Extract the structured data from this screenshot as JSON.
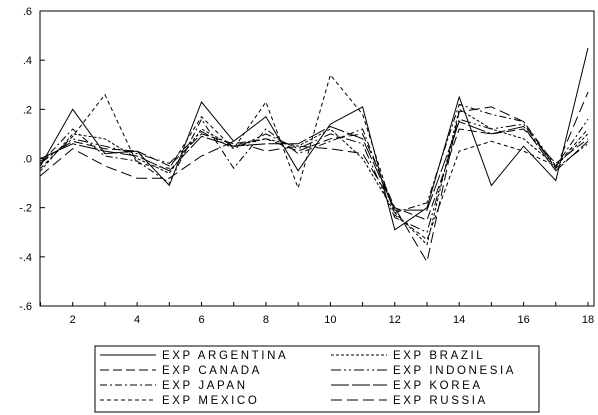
{
  "chart_data": {
    "type": "line",
    "title": "",
    "xlabel": "",
    "ylabel": "",
    "x": [
      1,
      2,
      3,
      4,
      5,
      6,
      7,
      8,
      9,
      10,
      11,
      12,
      13,
      14,
      15,
      16,
      17,
      18
    ],
    "xlim": [
      1,
      18
    ],
    "ylim": [
      -0.6,
      0.6
    ],
    "x_ticks": [
      2,
      4,
      6,
      8,
      10,
      12,
      14,
      16,
      18
    ],
    "x_tick_labels": [
      "2",
      "4",
      "6",
      "8",
      "10",
      "12",
      "14",
      "16",
      "18"
    ],
    "y_ticks": [
      -0.6,
      -0.4,
      -0.2,
      0.0,
      0.2,
      0.4,
      0.6
    ],
    "y_tick_labels": [
      "-.6",
      "-.4",
      "-.2",
      ".0",
      ".2",
      ".4",
      ".6"
    ],
    "grid": false,
    "legend_position": "bottom",
    "series": [
      {
        "name": "EXP ARGENTINA",
        "dash": "solid",
        "values": [
          -0.03,
          0.2,
          0.02,
          0.03,
          -0.11,
          0.23,
          0.07,
          0.17,
          -0.05,
          0.14,
          0.21,
          -0.29,
          -0.2,
          0.25,
          -0.11,
          0.05,
          -0.09,
          0.45
        ]
      },
      {
        "name": "EXP BRAZIL",
        "dash": "short",
        "values": [
          -0.05,
          0.1,
          0.08,
          0.0,
          -0.06,
          0.12,
          0.05,
          0.08,
          0.05,
          0.12,
          0.0,
          -0.22,
          -0.35,
          0.2,
          0.12,
          0.08,
          -0.03,
          0.1
        ]
      },
      {
        "name": "EXP CANADA",
        "dash": "long",
        "values": [
          -0.01,
          0.07,
          0.04,
          0.03,
          -0.03,
          0.1,
          0.06,
          0.08,
          0.03,
          0.08,
          0.1,
          -0.2,
          -0.25,
          0.12,
          0.1,
          0.12,
          -0.02,
          0.08
        ]
      },
      {
        "name": "EXP INDONESIA",
        "dash": "longdotdot",
        "values": [
          -0.02,
          0.08,
          0.05,
          0.02,
          -0.02,
          0.11,
          0.04,
          0.1,
          0.04,
          0.1,
          0.06,
          -0.24,
          -0.3,
          0.16,
          0.12,
          0.14,
          -0.04,
          0.06
        ]
      },
      {
        "name": "EXP JAPAN",
        "dash": "dashdot",
        "values": [
          -0.02,
          0.12,
          0.01,
          -0.01,
          -0.1,
          0.16,
          -0.04,
          0.12,
          0.02,
          0.07,
          0.12,
          -0.22,
          -0.18,
          0.22,
          0.18,
          0.15,
          -0.03,
          0.16
        ]
      },
      {
        "name": "EXP KOREA",
        "dash": "solidlong",
        "values": [
          0.0,
          0.06,
          0.03,
          0.01,
          -0.05,
          0.09,
          0.05,
          0.06,
          0.06,
          0.13,
          0.08,
          -0.21,
          -0.21,
          0.15,
          0.1,
          0.13,
          -0.05,
          0.07
        ]
      },
      {
        "name": "EXP MEXICO",
        "dash": "dotted",
        "values": [
          -0.04,
          0.09,
          0.26,
          -0.02,
          -0.04,
          0.17,
          0.04,
          0.23,
          -0.12,
          0.34,
          0.18,
          -0.23,
          -0.33,
          0.03,
          0.07,
          0.03,
          -0.03,
          0.12
        ]
      },
      {
        "name": "EXP RUSSIA",
        "dash": "longlong",
        "values": [
          -0.07,
          0.04,
          -0.03,
          -0.08,
          -0.08,
          0.01,
          0.07,
          0.03,
          0.05,
          0.04,
          0.02,
          -0.2,
          -0.42,
          0.19,
          0.21,
          0.15,
          -0.04,
          0.27
        ]
      }
    ]
  }
}
